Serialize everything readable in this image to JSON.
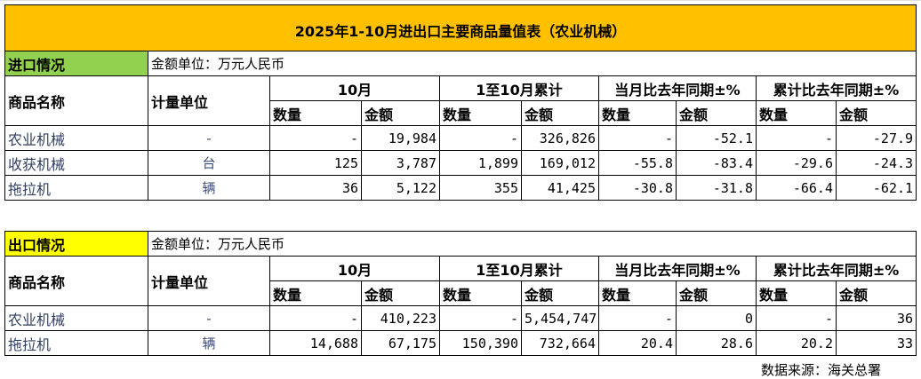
{
  "title": "2025年1-10月进出口主要商品量值表（农业机械）",
  "colors": {
    "title_bg": "#FFC000",
    "import_bg": "#92D050",
    "export_bg": "#FFFF00"
  },
  "headers": {
    "name": "商品名称",
    "unit": "计量单位",
    "month": "10月",
    "cumulative": "1至10月累计",
    "month_yoy": "当月比去年同期±%",
    "cum_yoy": "累计比去年同期±%",
    "qty": "数量",
    "amt": "金额"
  },
  "import": {
    "label": "进口情况",
    "unit_note": "金额单位：万元人民币",
    "rows": [
      {
        "name": "农业机械",
        "unit": "-",
        "v": [
          "-",
          "19,984",
          "-",
          "326,826",
          "-",
          "-52.1",
          "-",
          "-27.9"
        ]
      },
      {
        "name": "收获机械",
        "unit": "台",
        "v": [
          "125",
          "3,787",
          "1,899",
          "169,012",
          "-55.8",
          "-83.4",
          "-29.6",
          "-24.3"
        ]
      },
      {
        "name": "拖拉机",
        "unit": "辆",
        "v": [
          "36",
          "5,122",
          "355",
          "41,425",
          "-30.8",
          "-31.8",
          "-66.4",
          "-62.1"
        ]
      }
    ]
  },
  "export": {
    "label": "出口情况",
    "unit_note": "金额单位：万元人民币",
    "rows": [
      {
        "name": "农业机械",
        "unit": "-",
        "v": [
          "-",
          "410,223",
          "-",
          "5,454,747",
          "-",
          "0",
          "-",
          "36"
        ]
      },
      {
        "name": "拖拉机",
        "unit": "辆",
        "v": [
          "14,688",
          "67,175",
          "150,390",
          "732,664",
          "20.4",
          "28.6",
          "20.2",
          "33"
        ]
      }
    ]
  },
  "source": "数据来源：海关总署"
}
